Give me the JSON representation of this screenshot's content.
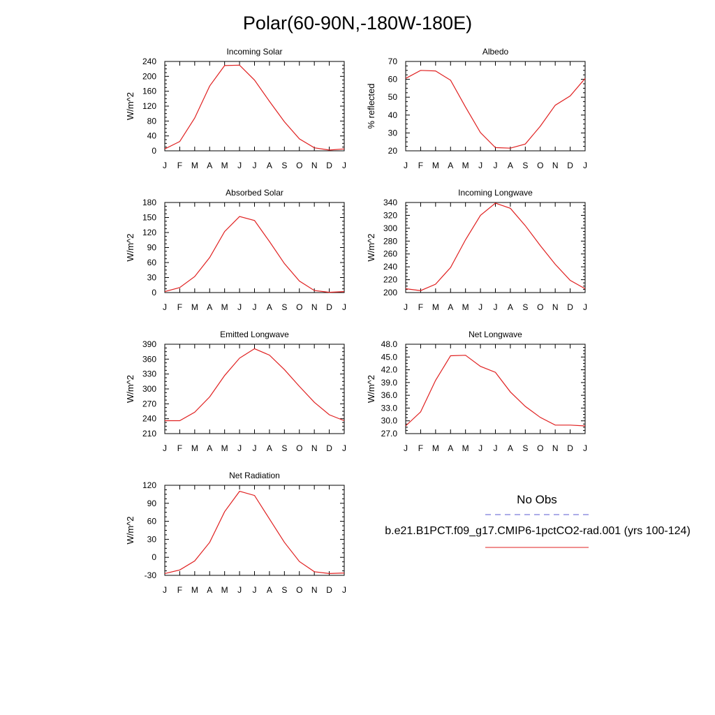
{
  "title": "Polar(60-90N,-180W-180E)",
  "legend": {
    "obs_label": "No Obs",
    "obs_color": "#5a5ad0",
    "model_label": "b.e21.B1PCT.f09_g17.CMIP6-1pctCO2-rad.001 (yrs 100-124)",
    "model_color": "#e02020"
  },
  "chart_data": [
    {
      "type": "line",
      "title": "Incoming Solar",
      "ylabel": "W/m^2",
      "x": [
        "J",
        "F",
        "M",
        "A",
        "M",
        "J",
        "J",
        "A",
        "S",
        "O",
        "N",
        "D",
        "J"
      ],
      "ylim": [
        0,
        240
      ],
      "yticks": [
        "0",
        "40",
        "80",
        "120",
        "160",
        "200",
        "240"
      ],
      "series": [
        {
          "values": [
            5,
            25,
            88,
            174,
            229,
            230,
            190,
            133,
            78,
            32,
            8,
            2,
            5
          ]
        }
      ]
    },
    {
      "type": "line",
      "title": "Albedo",
      "ylabel": "% reflected",
      "x": [
        "J",
        "F",
        "M",
        "A",
        "M",
        "J",
        "J",
        "A",
        "S",
        "O",
        "N",
        "D",
        "J"
      ],
      "ylim": [
        20,
        70
      ],
      "yticks": [
        "20",
        "30",
        "40",
        "50",
        "60",
        "70"
      ],
      "series": [
        {
          "values": [
            60.5,
            65,
            64.7,
            59.5,
            44.5,
            30.2,
            21.8,
            21.5,
            23.8,
            33.8,
            45.5,
            50.7,
            60.5
          ]
        }
      ]
    },
    {
      "type": "line",
      "title": "Absorbed Solar",
      "ylabel": "W/m^2",
      "x": [
        "J",
        "F",
        "M",
        "A",
        "M",
        "J",
        "J",
        "A",
        "S",
        "O",
        "N",
        "D",
        "J"
      ],
      "ylim": [
        0,
        180
      ],
      "yticks": [
        "0",
        "30",
        "60",
        "90",
        "120",
        "150",
        "180"
      ],
      "series": [
        {
          "values": [
            2,
            10,
            32,
            70,
            122,
            152,
            144,
            102,
            58,
            23,
            4,
            0.5,
            2
          ]
        }
      ]
    },
    {
      "type": "line",
      "title": "Incoming Longwave",
      "ylabel": "W/m^2",
      "x": [
        "J",
        "F",
        "M",
        "A",
        "M",
        "J",
        "J",
        "A",
        "S",
        "O",
        "N",
        "D",
        "J"
      ],
      "ylim": [
        200,
        340
      ],
      "yticks": [
        "200",
        "220",
        "240",
        "260",
        "280",
        "300",
        "320",
        "340"
      ],
      "series": [
        {
          "values": [
            206,
            203,
            213,
            239,
            282,
            320,
            339,
            331,
            304,
            273,
            244,
            219,
            206
          ]
        }
      ]
    },
    {
      "type": "line",
      "title": "Emitted Longwave",
      "ylabel": "W/m^2",
      "x": [
        "J",
        "F",
        "M",
        "A",
        "M",
        "J",
        "J",
        "A",
        "S",
        "O",
        "N",
        "D",
        "J"
      ],
      "ylim": [
        210,
        390
      ],
      "yticks": [
        "210",
        "240",
        "270",
        "300",
        "330",
        "360",
        "390"
      ],
      "series": [
        {
          "values": [
            236,
            236,
            253,
            284,
            327,
            362,
            381,
            368,
            339,
            305,
            273,
            248,
            236
          ]
        }
      ]
    },
    {
      "type": "line",
      "title": "Net Longwave",
      "ylabel": "W/m^2",
      "x": [
        "J",
        "F",
        "M",
        "A",
        "M",
        "J",
        "J",
        "A",
        "S",
        "O",
        "N",
        "D",
        "J"
      ],
      "ylim": [
        27,
        48
      ],
      "yticks": [
        "27.0",
        "30.0",
        "33.0",
        "36.0",
        "39.0",
        "42.0",
        "45.0",
        "48.0"
      ],
      "series": [
        {
          "values": [
            28.8,
            32.1,
            39.5,
            45.3,
            45.4,
            42.8,
            41.4,
            36.8,
            33.4,
            30.8,
            29.0,
            29.0,
            28.8
          ]
        }
      ]
    },
    {
      "type": "line",
      "title": "Net Radiation",
      "ylabel": "W/m^2",
      "x": [
        "J",
        "F",
        "M",
        "A",
        "M",
        "J",
        "J",
        "A",
        "S",
        "O",
        "N",
        "D",
        "J"
      ],
      "ylim": [
        -30,
        120
      ],
      "yticks": [
        "-30",
        "0",
        "30",
        "60",
        "90",
        "120"
      ],
      "series": [
        {
          "values": [
            -27,
            -21,
            -6,
            25,
            76,
            110,
            103,
            64,
            25,
            -7,
            -24,
            -27,
            -26
          ]
        }
      ]
    }
  ]
}
